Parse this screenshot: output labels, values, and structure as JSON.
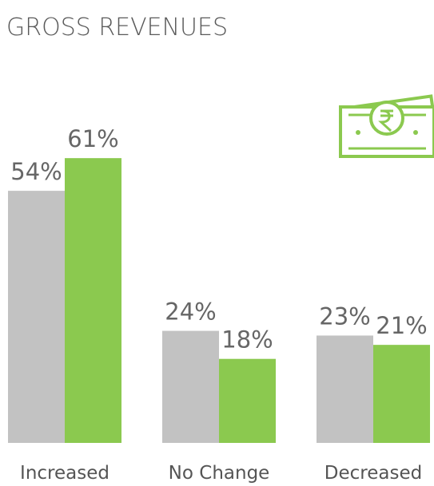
{
  "chart_data": {
    "type": "bar",
    "title": "GROSS REVENUES",
    "categories": [
      "Increased",
      "No Change",
      "Decreased"
    ],
    "series": [
      {
        "color": "#c2c2c2",
        "values": [
          54,
          24,
          23
        ],
        "value_labels": [
          "54%",
          "24%",
          "23%"
        ]
      },
      {
        "color": "#8bc94f",
        "values": [
          61,
          18,
          21
        ],
        "value_labels": [
          "61%",
          "18%",
          "21%"
        ]
      }
    ]
  }
}
